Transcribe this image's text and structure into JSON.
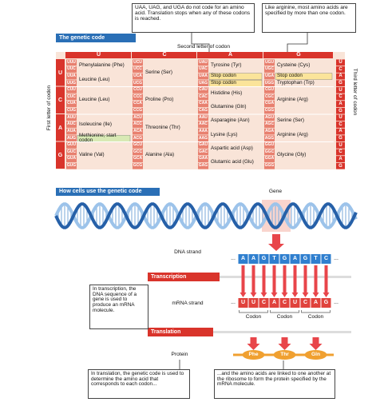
{
  "callouts": [
    "UAA, UAG, and UGA do not code for an amino acid. Translation stops when any of these codons is reached.",
    "Like arginine, most amino acids are specified by more than one codon."
  ],
  "genetic_code": {
    "title": "The genetic code",
    "second_letter_label": "Second letter of codon",
    "first_letter_label": "First letter of codon",
    "third_letter_label": "Third letter of codon",
    "letters": [
      "U",
      "C",
      "A",
      "G"
    ],
    "rows": [
      {
        "cells": [
          {
            "groups": [
              {
                "codons": [
                  "UUU",
                  "UUC"
                ],
                "label": "Phenylalanine (Phe)"
              },
              {
                "codons": [
                  "UUA",
                  "UUG"
                ],
                "label": "Leucine (Leu)"
              }
            ]
          },
          {
            "groups": [
              {
                "codons": [
                  "UCU",
                  "UCC",
                  "UCA",
                  "UCG"
                ],
                "label": "Serine (Ser)"
              }
            ]
          },
          {
            "groups": [
              {
                "codons": [
                  "UAU",
                  "UAC"
                ],
                "label": "Tyrosine (Tyr)"
              },
              {
                "codons": [
                  "UAA"
                ],
                "label": "Stop codon",
                "highlight": "#fbe49a"
              },
              {
                "codons": [
                  "UAG"
                ],
                "label": "Stop codon",
                "highlight": "#fbe49a"
              }
            ]
          },
          {
            "groups": [
              {
                "codons": [
                  "UGU",
                  "UGC"
                ],
                "label": "Cysteine (Cys)"
              },
              {
                "codons": [
                  "UGA"
                ],
                "label": "Stop codon",
                "highlight": "#fbe49a"
              },
              {
                "codons": [
                  "UGG"
                ],
                "label": "Tryptophan (Trp)"
              }
            ]
          }
        ]
      },
      {
        "cells": [
          {
            "groups": [
              {
                "codons": [
                  "CUU",
                  "CUC",
                  "CUA",
                  "CUG"
                ],
                "label": "Leucine (Leu)"
              }
            ]
          },
          {
            "groups": [
              {
                "codons": [
                  "CCU",
                  "CCC",
                  "CCA",
                  "CCG"
                ],
                "label": "Proline (Pro)"
              }
            ]
          },
          {
            "groups": [
              {
                "codons": [
                  "CAU",
                  "CAC"
                ],
                "label": "Histidine (His)"
              },
              {
                "codons": [
                  "CAA",
                  "CAG"
                ],
                "label": "Glutamine (Gln)"
              }
            ]
          },
          {
            "groups": [
              {
                "codons": [
                  "CGU",
                  "CGC",
                  "CGA",
                  "CGG"
                ],
                "label": "Arginine (Arg)"
              }
            ]
          }
        ]
      },
      {
        "cells": [
          {
            "groups": [
              {
                "codons": [
                  "AUU",
                  "AUC",
                  "AUA"
                ],
                "label": "Isoleucine (Ile)"
              },
              {
                "codons": [
                  "AUG"
                ],
                "label": "Methionine; start codon",
                "highlight": "#d8e9b4"
              }
            ]
          },
          {
            "groups": [
              {
                "codons": [
                  "ACU",
                  "ACC",
                  "ACA",
                  "ACG"
                ],
                "label": "Threonine (Thr)"
              }
            ]
          },
          {
            "groups": [
              {
                "codons": [
                  "AAU",
                  "AAC"
                ],
                "label": "Asparagine (Asn)"
              },
              {
                "codons": [
                  "AAA",
                  "AAG"
                ],
                "label": "Lysine (Lys)"
              }
            ]
          },
          {
            "groups": [
              {
                "codons": [
                  "AGU",
                  "AGC"
                ],
                "label": "Serine (Ser)"
              },
              {
                "codons": [
                  "AGA",
                  "AGG"
                ],
                "label": "Arginine (Arg)"
              }
            ]
          }
        ]
      },
      {
        "cells": [
          {
            "groups": [
              {
                "codons": [
                  "GUU",
                  "GUC",
                  "GUA",
                  "GUG"
                ],
                "label": "Valine (Val)"
              }
            ]
          },
          {
            "groups": [
              {
                "codons": [
                  "GCU",
                  "GCC",
                  "GCA",
                  "GCG"
                ],
                "label": "Alanine (Ala)"
              }
            ]
          },
          {
            "groups": [
              {
                "codons": [
                  "GAU",
                  "GAC"
                ],
                "label": "Aspartic acid (Asp)"
              },
              {
                "codons": [
                  "GAA",
                  "GAG"
                ],
                "label": "Glutamic acid (Glu)"
              }
            ]
          },
          {
            "groups": [
              {
                "codons": [
                  "GGU",
                  "GGC",
                  "GGA",
                  "GGG"
                ],
                "label": "Glycine (Gly)"
              }
            ]
          }
        ]
      }
    ]
  },
  "how": {
    "title": "How cells use the genetic code",
    "gene_label": "Gene",
    "dna_label": "DNA strand",
    "ellipsis": "...",
    "dna_bases": [
      "A",
      "A",
      "G",
      "T",
      "G",
      "A",
      "G",
      "T",
      "C"
    ],
    "transcription": "Transcription",
    "transcription_note": "In transcription, the DNA sequence of a gene is used to produce an mRNA molecule.",
    "mrna_label": "mRNA strand",
    "mrna_bases": [
      "U",
      "U",
      "C",
      "A",
      "C",
      "U",
      "C",
      "A",
      "G"
    ],
    "codon_label": "Codon",
    "translation": "Translation",
    "protein_label": "Protein",
    "amino_acids": [
      "Phe",
      "Thr",
      "Gln"
    ],
    "translation_note": "In translation, the genetic code is used to determine the amino acid that corresponds to each codon...",
    "linking_note": "...and the amino acids are linked to one another at the ribosome to form the protein specified by the mRNA molecule."
  }
}
